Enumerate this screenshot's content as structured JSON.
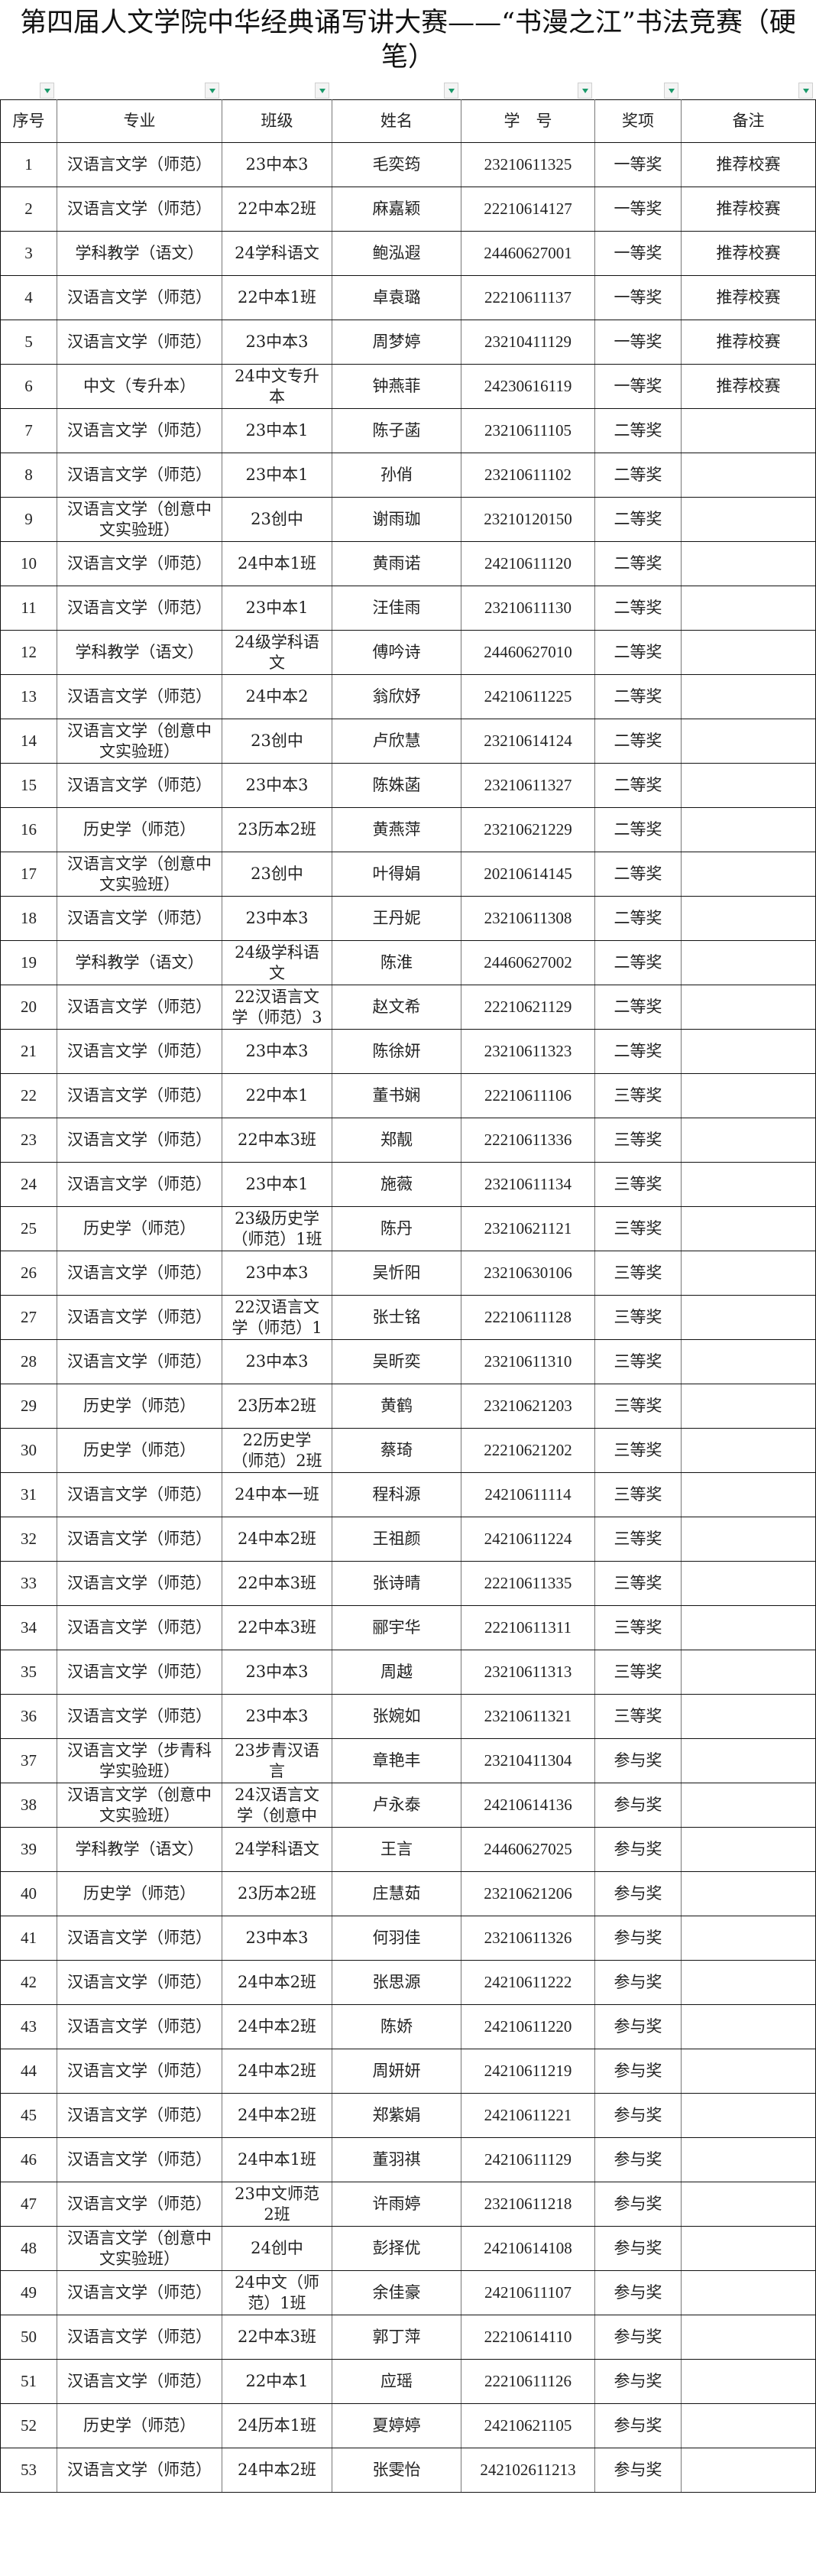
{
  "title": "第四届人文学院中华经典诵写讲大赛——“书漫之江”书法竞赛（硬笔）",
  "filter_icon": "dropdown-filter-icon",
  "accent_color": "#1a9a6a",
  "headers": [
    "序号",
    "专业",
    "班级",
    "姓名",
    "学　号",
    "奖项",
    "备注"
  ],
  "rows": [
    [
      "1",
      "汉语言文学（师范）",
      "23中本3",
      "毛奕筠",
      "23210611325",
      "一等奖",
      "推荐校赛"
    ],
    [
      "2",
      "汉语言文学（师范）",
      "22中本2班",
      "麻嘉颖",
      "22210614127",
      "一等奖",
      "推荐校赛"
    ],
    [
      "3",
      "学科教学（语文）",
      "24学科语文",
      "鲍泓遐",
      "24460627001",
      "一等奖",
      "推荐校赛"
    ],
    [
      "4",
      "汉语言文学（师范）",
      "22中本1班",
      "卓袁璐",
      "22210611137",
      "一等奖",
      "推荐校赛"
    ],
    [
      "5",
      "汉语言文学（师范）",
      "23中本3",
      "周梦婷",
      "23210411129",
      "一等奖",
      "推荐校赛"
    ],
    [
      "6",
      "中文（专升本）",
      "24中文专升本",
      "钟燕菲",
      "24230616119",
      "一等奖",
      "推荐校赛"
    ],
    [
      "7",
      "汉语言文学（师范）",
      "23中本1",
      "陈子菡",
      "23210611105",
      "二等奖",
      ""
    ],
    [
      "8",
      "汉语言文学（师范）",
      "23中本1",
      "孙俏",
      "23210611102",
      "二等奖",
      ""
    ],
    [
      "9",
      "汉语言文学（创意中文实验班）",
      "23创中",
      "谢雨珈",
      "23210120150",
      "二等奖",
      ""
    ],
    [
      "10",
      "汉语言文学（师范）",
      "24中本1班",
      "黄雨诺",
      "24210611120",
      "二等奖",
      ""
    ],
    [
      "11",
      "汉语言文学（师范）",
      "23中本1",
      "汪佳雨",
      "23210611130",
      "二等奖",
      ""
    ],
    [
      "12",
      "学科教学（语文）",
      "24级学科语文",
      "傅吟诗",
      "24460627010",
      "二等奖",
      ""
    ],
    [
      "13",
      "汉语言文学（师范）",
      "24中本2",
      "翁欣妤",
      "24210611225",
      "二等奖",
      ""
    ],
    [
      "14",
      "汉语言文学（创意中文实验班）",
      "23创中",
      "卢欣慧",
      "23210614124",
      "二等奖",
      ""
    ],
    [
      "15",
      "汉语言文学（师范）",
      "23中本3",
      "陈姝菡",
      "23210611327",
      "二等奖",
      ""
    ],
    [
      "16",
      "历史学（师范）",
      "23历本2班",
      "黄燕萍",
      "23210621229",
      "二等奖",
      ""
    ],
    [
      "17",
      "汉语言文学（创意中文实验班）",
      "23创中",
      "叶得娟",
      "20210614145",
      "二等奖",
      ""
    ],
    [
      "18",
      "汉语言文学（师范）",
      "23中本3",
      "王丹妮",
      "23210611308",
      "二等奖",
      ""
    ],
    [
      "19",
      "学科教学（语文）",
      "24级学科语文",
      "陈淮",
      "24460627002",
      "二等奖",
      ""
    ],
    [
      "20",
      "汉语言文学（师范）",
      "22汉语言文学（师范）3",
      "赵文希",
      "22210621129",
      "二等奖",
      ""
    ],
    [
      "21",
      "汉语言文学（师范）",
      "23中本3",
      "陈徐妍",
      "23210611323",
      "二等奖",
      ""
    ],
    [
      "22",
      "汉语言文学（师范）",
      "22中本1",
      "董书娴",
      "22210611106",
      "三等奖",
      ""
    ],
    [
      "23",
      "汉语言文学（师范）",
      "22中本3班",
      "郑靓",
      "22210611336",
      "三等奖",
      ""
    ],
    [
      "24",
      "汉语言文学（师范）",
      "23中本1",
      "施薇",
      "23210611134",
      "三等奖",
      ""
    ],
    [
      "25",
      "历史学（师范）",
      "23级历史学（师范）1班",
      "陈丹",
      "23210621121",
      "三等奖",
      ""
    ],
    [
      "26",
      "汉语言文学（师范）",
      "23中本3",
      "吴忻阳",
      "23210630106",
      "三等奖",
      ""
    ],
    [
      "27",
      "汉语言文学（师范）",
      "22汉语言文学（师范）1",
      "张士铭",
      "22210611128",
      "三等奖",
      ""
    ],
    [
      "28",
      "汉语言文学（师范）",
      "23中本3",
      "吴昕奕",
      "23210611310",
      "三等奖",
      ""
    ],
    [
      "29",
      "历史学（师范）",
      "23历本2班",
      "黄鹤",
      "23210621203",
      "三等奖",
      ""
    ],
    [
      "30",
      "历史学（师范）",
      "22历史学（师范）2班",
      "蔡琦",
      "22210621202",
      "三等奖",
      ""
    ],
    [
      "31",
      "汉语言文学（师范）",
      "24中本一班",
      "程科源",
      "24210611114",
      "三等奖",
      ""
    ],
    [
      "32",
      "汉语言文学（师范）",
      "24中本2班",
      "王祖颜",
      "24210611224",
      "三等奖",
      ""
    ],
    [
      "33",
      "汉语言文学（师范）",
      "22中本3班",
      "张诗晴",
      "22210611335",
      "三等奖",
      ""
    ],
    [
      "34",
      "汉语言文学（师范）",
      "22中本3班",
      "郦宇华",
      "22210611311",
      "三等奖",
      ""
    ],
    [
      "35",
      "汉语言文学（师范）",
      "23中本3",
      "周越",
      "23210611313",
      "三等奖",
      ""
    ],
    [
      "36",
      "汉语言文学（师范）",
      "23中本3",
      "张婉如",
      "23210611321",
      "三等奖",
      ""
    ],
    [
      "37",
      "汉语言文学（步青科学实验班）",
      "23步青汉语言",
      "章艳丰",
      "23210411304",
      "参与奖",
      ""
    ],
    [
      "38",
      "汉语言文学（创意中文实验班）",
      "24汉语言文学（创意中",
      "卢永泰",
      "24210614136",
      "参与奖",
      ""
    ],
    [
      "39",
      "学科教学（语文）",
      "24学科语文",
      "王言",
      "24460627025",
      "参与奖",
      ""
    ],
    [
      "40",
      "历史学（师范）",
      "23历本2班",
      "庄慧茹",
      "23210621206",
      "参与奖",
      ""
    ],
    [
      "41",
      "汉语言文学（师范）",
      "23中本3",
      "何羽佳",
      "23210611326",
      "参与奖",
      ""
    ],
    [
      "42",
      "汉语言文学（师范）",
      "24中本2班",
      "张思源",
      "24210611222",
      "参与奖",
      ""
    ],
    [
      "43",
      "汉语言文学（师范）",
      "24中本2班",
      "陈娇",
      "24210611220",
      "参与奖",
      ""
    ],
    [
      "44",
      "汉语言文学（师范）",
      "24中本2班",
      "周妍妍",
      "24210611219",
      "参与奖",
      ""
    ],
    [
      "45",
      "汉语言文学（师范）",
      "24中本2班",
      "郑紫娟",
      "24210611221",
      "参与奖",
      ""
    ],
    [
      "46",
      "汉语言文学（师范）",
      "24中本1班",
      "董羽祺",
      "24210611129",
      "参与奖",
      ""
    ],
    [
      "47",
      "汉语言文学（师范）",
      "23中文师范2班",
      "许雨婷",
      "23210611218",
      "参与奖",
      ""
    ],
    [
      "48",
      "汉语言文学（创意中文实验班）",
      "24创中",
      "彭择优",
      "24210614108",
      "参与奖",
      ""
    ],
    [
      "49",
      "汉语言文学（师范）",
      "24中文（师范）1班",
      "余佳豪",
      "24210611107",
      "参与奖",
      ""
    ],
    [
      "50",
      "汉语言文学（师范）",
      "22中本3班",
      "郭丁萍",
      "22210614110",
      "参与奖",
      ""
    ],
    [
      "51",
      "汉语言文学（师范）",
      "22中本1",
      "应瑶",
      "22210611126",
      "参与奖",
      ""
    ],
    [
      "52",
      "历史学（师范）",
      "24历本1班",
      "夏婷婷",
      "24210621105",
      "参与奖",
      ""
    ],
    [
      "53",
      "汉语言文学（师范）",
      "24中本2班",
      "张雯怡",
      "242102611213",
      "参与奖",
      ""
    ]
  ]
}
